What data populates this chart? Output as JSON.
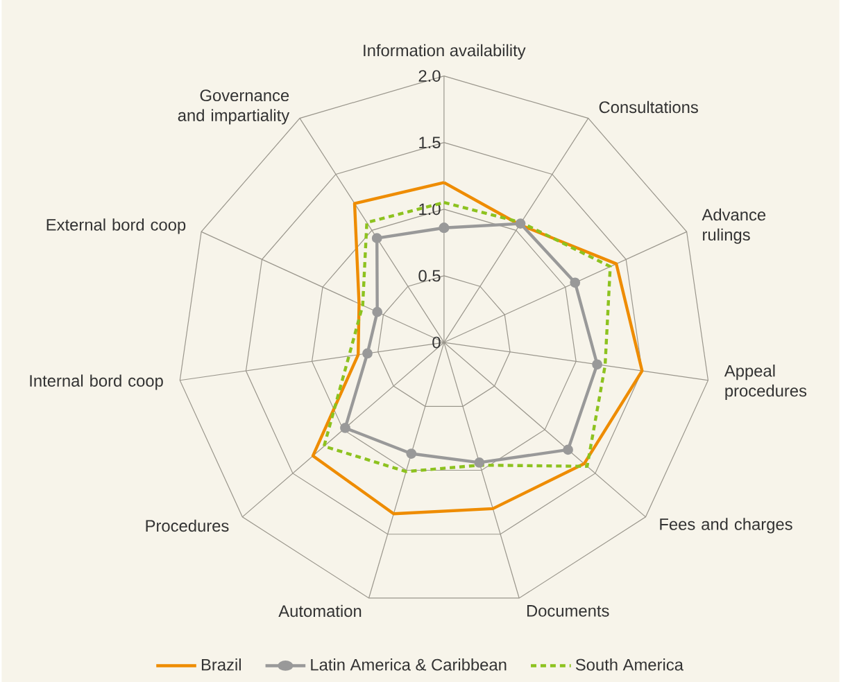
{
  "chart_data": {
    "type": "radar",
    "categories": [
      "Information availability",
      "Consultations",
      "Advance rulings",
      "Appeal procedures",
      "Fees and charges",
      "Documents",
      "Automation",
      "Procedures",
      "Internal bord coop",
      "External bord coop",
      "Governance and impartiality"
    ],
    "series": [
      {
        "name": "Brazil",
        "color": "#ee8c00",
        "values": [
          1.2,
          1.05,
          1.42,
          1.5,
          1.39,
          1.3,
          1.34,
          1.3,
          0.65,
          0.7,
          1.24
        ]
      },
      {
        "name": "Latin America & Caribbean",
        "color": "#999999",
        "marker": "circle",
        "values": [
          0.86,
          1.06,
          1.08,
          1.16,
          1.23,
          0.94,
          0.87,
          0.98,
          0.58,
          0.55,
          0.93
        ]
      },
      {
        "name": "South America",
        "color": "#8dc21f",
        "line_style": "dashed",
        "values": [
          1.05,
          1.07,
          1.37,
          1.22,
          1.42,
          0.96,
          1.01,
          1.19,
          0.72,
          0.67,
          1.07
        ]
      }
    ],
    "ylim": [
      0,
      2
    ],
    "yticks": [
      0,
      0.5,
      {
        "value": 1,
        "label": "1.0"
      },
      1.5,
      {
        "value": 2,
        "label": "2.0"
      }
    ],
    "grid": true,
    "legend": "bottom"
  }
}
